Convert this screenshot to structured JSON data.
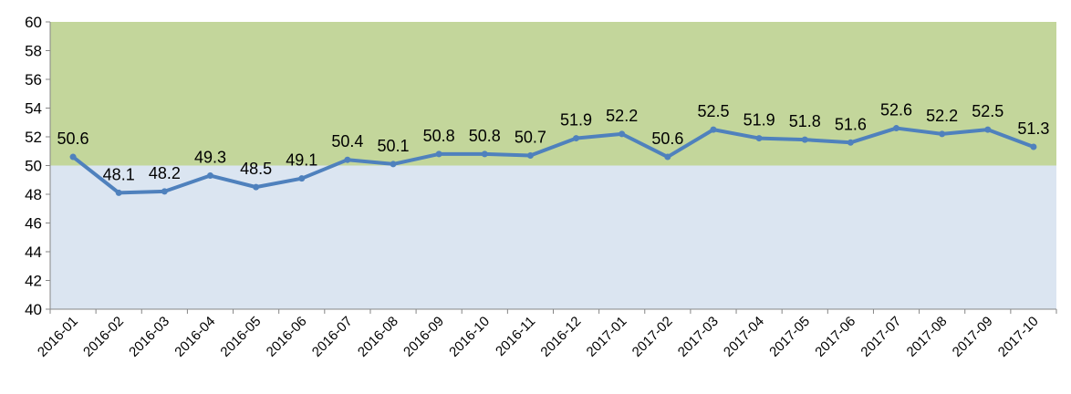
{
  "chart_data": {
    "type": "line",
    "title": "",
    "xlabel": "",
    "ylabel": "",
    "categories": [
      "2016-01",
      "2016-02",
      "2016-03",
      "2016-04",
      "2016-05",
      "2016-06",
      "2016-07",
      "2016-08",
      "2016-09",
      "2016-10",
      "2016-11",
      "2016-12",
      "2017-01",
      "2017-02",
      "2017-03",
      "2017-04",
      "2017-05",
      "2017-06",
      "2017-07",
      "2017-08",
      "2017-09",
      "2017-10"
    ],
    "series": [
      {
        "values": [
          50.6,
          48.1,
          48.2,
          49.3,
          48.5,
          49.1,
          50.4,
          50.1,
          50.8,
          50.8,
          50.7,
          51.9,
          52.2,
          50.6,
          52.5,
          51.9,
          51.8,
          51.6,
          52.6,
          52.2,
          52.5,
          51.3
        ],
        "color": "#4f81bd"
      }
    ],
    "data_labels": [
      "50.6",
      "48.1",
      "48.2",
      "49.3",
      "48.5",
      "49.1",
      "50.4",
      "50.1",
      "50.8",
      "50.8",
      "50.7",
      "51.9",
      "52.2",
      "50.6",
      "52.5",
      "51.9",
      "51.8",
      "51.6",
      "52.6",
      "52.2",
      "52.5",
      "51.3"
    ],
    "ylim": [
      40,
      60
    ],
    "y_ticks": [
      "40",
      "42",
      "44",
      "46",
      "48",
      "50",
      "52",
      "54",
      "56",
      "58",
      "60"
    ],
    "bands": [
      {
        "from": 50,
        "to": 60,
        "color": "#c3d69b"
      },
      {
        "from": 40,
        "to": 50,
        "color": "#dbe5f1"
      }
    ],
    "grid": false,
    "legend": "none"
  }
}
